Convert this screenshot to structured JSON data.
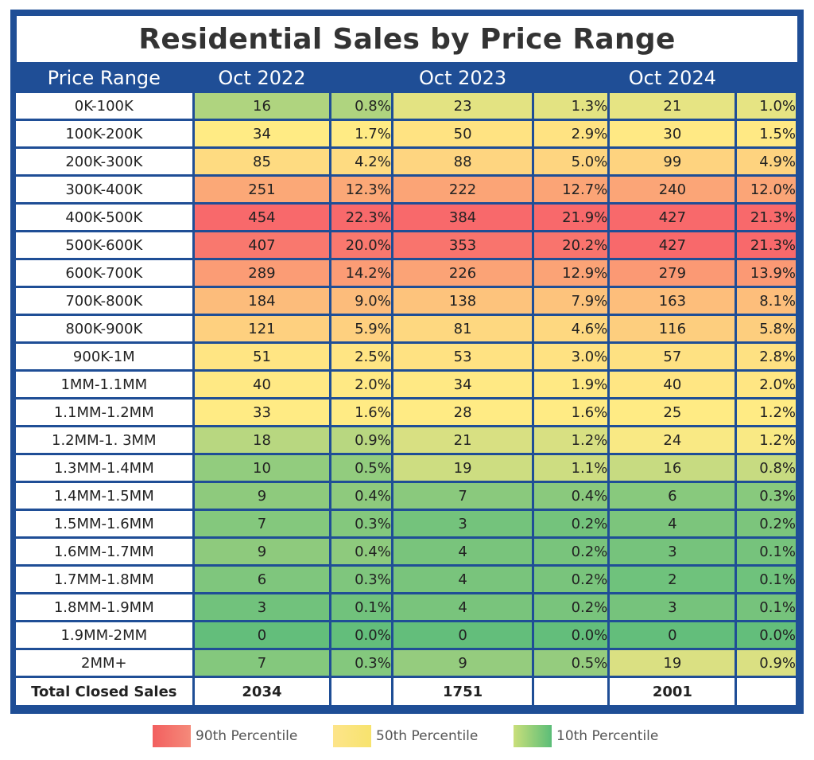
{
  "chart_data": {
    "type": "table",
    "title": "Residential Sales by Price Range",
    "columns": [
      "Price Range",
      "Oct 2022",
      "",
      "Oct 2023",
      "",
      "Oct 2024",
      ""
    ],
    "rows": [
      {
        "range": "0K-100K",
        "v22": 16,
        "p22": "0.8%",
        "v23": 23,
        "p23": "1.3%",
        "v24": 21,
        "p24": "1.0%"
      },
      {
        "range": "100K-200K",
        "v22": 34,
        "p22": "1.7%",
        "v23": 50,
        "p23": "2.9%",
        "v24": 30,
        "p24": "1.5%"
      },
      {
        "range": "200K-300K",
        "v22": 85,
        "p22": "4.2%",
        "v23": 88,
        "p23": "5.0%",
        "v24": 99,
        "p24": "4.9%"
      },
      {
        "range": "300K-400K",
        "v22": 251,
        "p22": "12.3%",
        "v23": 222,
        "p23": "12.7%",
        "v24": 240,
        "p24": "12.0%"
      },
      {
        "range": "400K-500K",
        "v22": 454,
        "p22": "22.3%",
        "v23": 384,
        "p23": "21.9%",
        "v24": 427,
        "p24": "21.3%"
      },
      {
        "range": "500K-600K",
        "v22": 407,
        "p22": "20.0%",
        "v23": 353,
        "p23": "20.2%",
        "v24": 427,
        "p24": "21.3%"
      },
      {
        "range": "600K-700K",
        "v22": 289,
        "p22": "14.2%",
        "v23": 226,
        "p23": "12.9%",
        "v24": 279,
        "p24": "13.9%"
      },
      {
        "range": "700K-800K",
        "v22": 184,
        "p22": "9.0%",
        "v23": 138,
        "p23": "7.9%",
        "v24": 163,
        "p24": "8.1%"
      },
      {
        "range": "800K-900K",
        "v22": 121,
        "p22": "5.9%",
        "v23": 81,
        "p23": "4.6%",
        "v24": 116,
        "p24": "5.8%"
      },
      {
        "range": "900K-1M",
        "v22": 51,
        "p22": "2.5%",
        "v23": 53,
        "p23": "3.0%",
        "v24": 57,
        "p24": "2.8%"
      },
      {
        "range": "1MM-1.1MM",
        "v22": 40,
        "p22": "2.0%",
        "v23": 34,
        "p23": "1.9%",
        "v24": 40,
        "p24": "2.0%"
      },
      {
        "range": "1.1MM-1.2MM",
        "v22": 33,
        "p22": "1.6%",
        "v23": 28,
        "p23": "1.6%",
        "v24": 25,
        "p24": "1.2%"
      },
      {
        "range": "1.2MM-1. 3MM",
        "v22": 18,
        "p22": "0.9%",
        "v23": 21,
        "p23": "1.2%",
        "v24": 24,
        "p24": "1.2%"
      },
      {
        "range": "1.3MM-1.4MM",
        "v22": 10,
        "p22": "0.5%",
        "v23": 19,
        "p23": "1.1%",
        "v24": 16,
        "p24": "0.8%"
      },
      {
        "range": "1.4MM-1.5MM",
        "v22": 9,
        "p22": "0.4%",
        "v23": 7,
        "p23": "0.4%",
        "v24": 6,
        "p24": "0.3%"
      },
      {
        "range": "1.5MM-1.6MM",
        "v22": 7,
        "p22": "0.3%",
        "v23": 3,
        "p23": "0.2%",
        "v24": 4,
        "p24": "0.2%"
      },
      {
        "range": "1.6MM-1.7MM",
        "v22": 9,
        "p22": "0.4%",
        "v23": 4,
        "p23": "0.2%",
        "v24": 3,
        "p24": "0.1%"
      },
      {
        "range": "1.7MM-1.8MM",
        "v22": 6,
        "p22": "0.3%",
        "v23": 4,
        "p23": "0.2%",
        "v24": 2,
        "p24": "0.1%"
      },
      {
        "range": "1.8MM-1.9MM",
        "v22": 3,
        "p22": "0.1%",
        "v23": 4,
        "p23": "0.2%",
        "v24": 3,
        "p24": "0.1%"
      },
      {
        "range": "1.9MM-2MM",
        "v22": 0,
        "p22": "0.0%",
        "v23": 0,
        "p23": "0.0%",
        "v24": 0,
        "p24": "0.0%"
      },
      {
        "range": "2MM+",
        "v22": 7,
        "p22": "0.3%",
        "v23": 9,
        "p23": "0.5%",
        "v24": 19,
        "p24": "0.9%"
      }
    ],
    "totals": {
      "label": "Total Closed Sales",
      "v22": 2034,
      "v23": 1751,
      "v24": 2001
    },
    "legend": [
      {
        "label": "90th Percentile",
        "color": "#f26a6a"
      },
      {
        "label": "50th Percentile",
        "color": "#fde98a"
      },
      {
        "label": "10th Percentile",
        "color": "#5bbd78"
      }
    ],
    "header_color": "#1f4e96"
  }
}
